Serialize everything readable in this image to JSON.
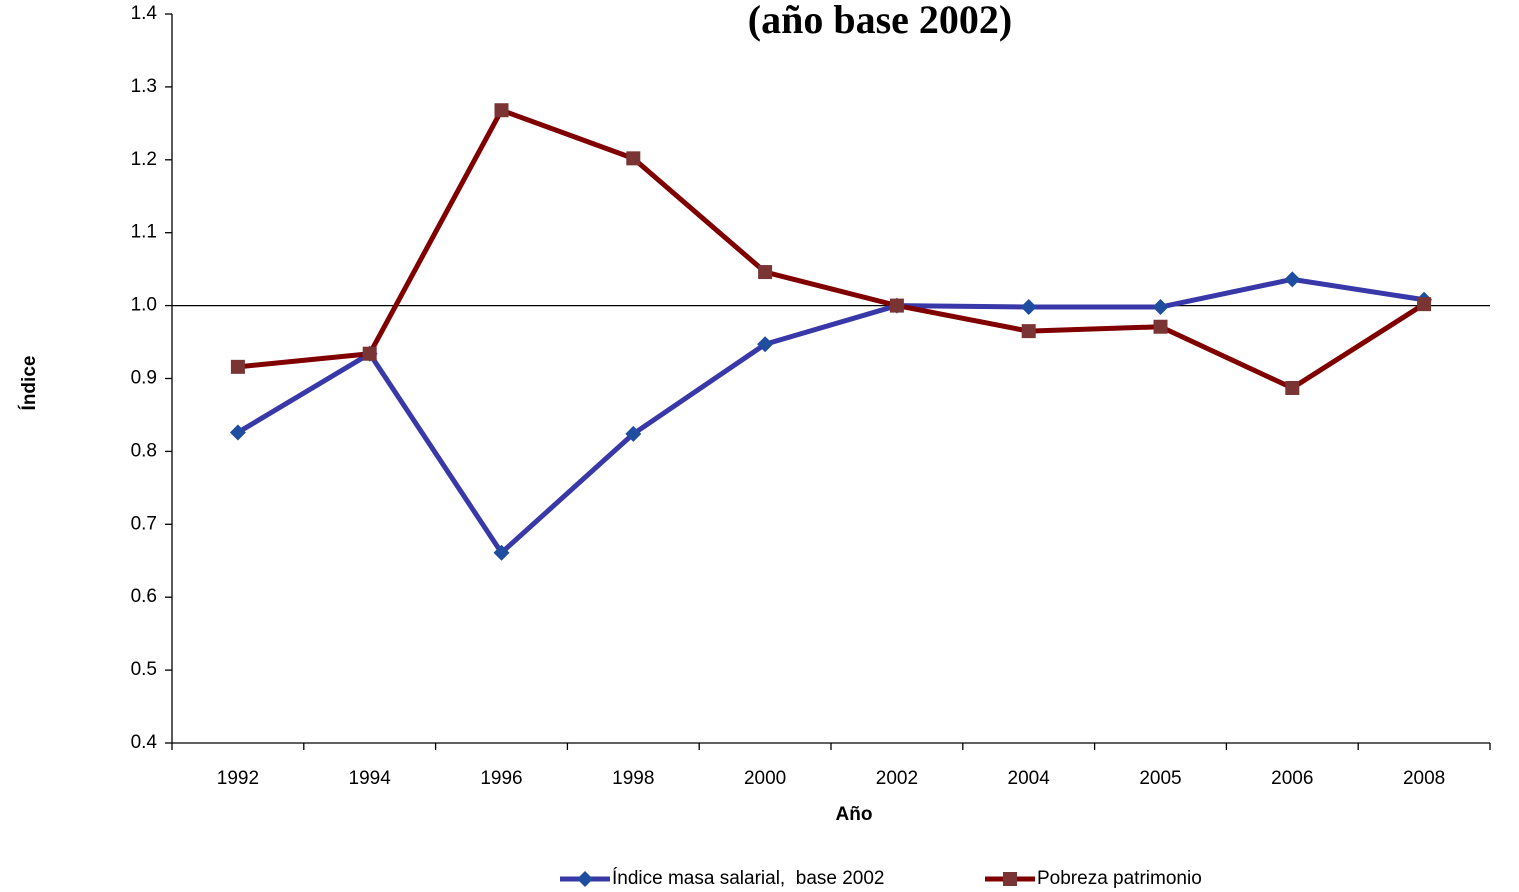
{
  "chart_data": {
    "type": "line",
    "title": "(año base 2002)",
    "x_label": "Año",
    "y_label": "Índice",
    "categories": [
      "1992",
      "1994",
      "1996",
      "1998",
      "2000",
      "2002",
      "2004",
      "2005",
      "2006",
      "2008"
    ],
    "series": [
      {
        "name": "Índice masa salarial,  base 2002",
        "color": "#3838a8",
        "marker_color": "#1f4ea0",
        "marker": "diamond",
        "values": [
          0.826,
          0.934,
          0.661,
          0.824,
          0.947,
          1.0,
          0.998,
          0.998,
          1.036,
          1.008
        ]
      },
      {
        "name": "Pobreza patrimonio",
        "color": "#800000",
        "marker_color": "#7a3434",
        "marker": "square",
        "values": [
          0.916,
          0.934,
          1.268,
          1.202,
          1.046,
          1.0,
          0.965,
          0.971,
          0.887,
          1.002
        ]
      }
    ],
    "ylim": [
      0.4,
      1.4
    ],
    "yticks": [
      0.4,
      0.5,
      0.6,
      0.7,
      0.8,
      0.9,
      {
        "value": 1,
        "label": "1.0"
      },
      1.1,
      1.2,
      1.3,
      1.4
    ],
    "reference_line": 1,
    "grid": false,
    "legend": "bottom"
  }
}
